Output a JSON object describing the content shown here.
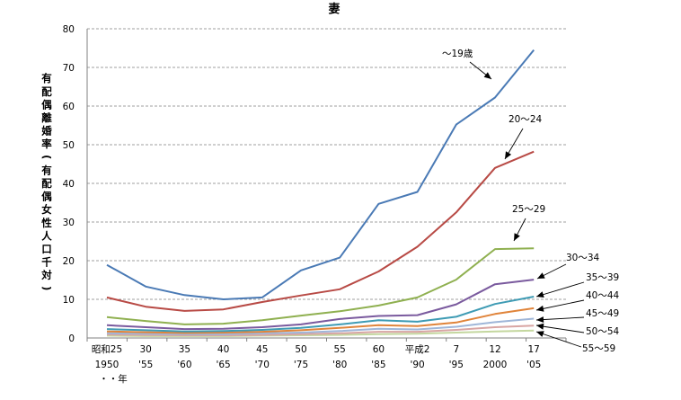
{
  "chart_data": {
    "type": "line",
    "title": "妻",
    "ylabel": "有配偶離婚率(有配偶女性人口千対)",
    "ylim": [
      0,
      80
    ],
    "yticks": [
      0,
      10,
      20,
      30,
      40,
      50,
      60,
      70,
      80
    ],
    "grid": true,
    "x_labels_top": [
      "昭和25",
      "30",
      "35",
      "40",
      "45",
      "50",
      "55",
      "60",
      "平成2",
      "7",
      "12",
      "17"
    ],
    "x_labels_bottom": [
      "1950",
      "'55",
      "'60",
      "'65",
      "'70",
      "'75",
      "'80",
      "'85",
      "'90",
      "'95",
      "2000",
      "'05"
    ],
    "x_unit_label": "・・年",
    "series": [
      {
        "name": "〜19歳",
        "color": "#4a7ab5",
        "values": [
          18.9,
          13.3,
          11.1,
          10.0,
          10.5,
          17.5,
          20.8,
          34.7,
          37.8,
          55.2,
          62.2,
          74.5
        ]
      },
      {
        "name": "20〜24",
        "color": "#b84a45",
        "values": [
          10.5,
          8.1,
          7.0,
          7.4,
          9.3,
          11.0,
          12.6,
          17.2,
          23.6,
          32.5,
          44.0,
          48.2
        ]
      },
      {
        "name": "25〜29",
        "color": "#8fb050",
        "values": [
          5.4,
          4.4,
          3.5,
          3.7,
          4.6,
          5.8,
          6.9,
          8.4,
          10.5,
          15.1,
          23.0,
          23.2
        ]
      },
      {
        "name": "30〜34",
        "color": "#7a5a9e",
        "values": [
          3.3,
          2.8,
          2.3,
          2.4,
          2.8,
          3.5,
          4.9,
          5.7,
          5.9,
          8.7,
          13.9,
          15.1
        ]
      },
      {
        "name": "35〜39",
        "color": "#3e9bb4",
        "values": [
          2.3,
          2.0,
          1.7,
          1.8,
          2.1,
          2.6,
          3.5,
          4.6,
          4.2,
          5.5,
          8.8,
          10.7
        ]
      },
      {
        "name": "40〜44",
        "color": "#e0843a",
        "values": [
          1.7,
          1.5,
          1.3,
          1.4,
          1.6,
          2.0,
          2.6,
          3.3,
          3.1,
          4.0,
          6.2,
          7.7
        ]
      },
      {
        "name": "45〜49",
        "color": "#9fb6d8",
        "values": [
          1.2,
          1.1,
          1.0,
          1.0,
          1.2,
          1.4,
          1.8,
          2.4,
          2.2,
          2.9,
          4.1,
          5.0
        ]
      },
      {
        "name": "50〜54",
        "color": "#d8a5a3",
        "values": [
          0.9,
          0.8,
          0.7,
          0.7,
          0.8,
          1.0,
          1.2,
          1.6,
          1.6,
          2.1,
          2.8,
          3.2
        ]
      },
      {
        "name": "55〜59",
        "color": "#c4d79f",
        "values": [
          0.6,
          0.5,
          0.5,
          0.5,
          0.6,
          0.7,
          0.8,
          1.0,
          1.1,
          1.4,
          1.7,
          1.9
        ]
      }
    ]
  }
}
